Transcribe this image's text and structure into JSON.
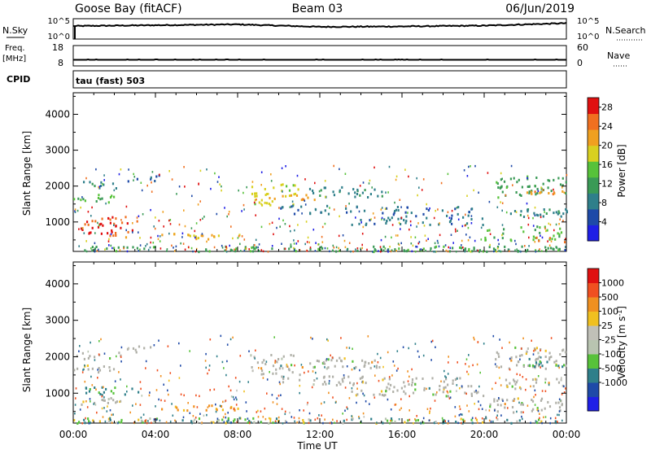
{
  "header": {
    "site": "Goose Bay (fitACF)",
    "beam": "Beam 03",
    "date": "06/Jun/2019"
  },
  "top_panels": {
    "nsky_label": "N.Sky",
    "nsky_ticks": [
      "10^5",
      "10^0"
    ],
    "nsearch_label": "N.Search",
    "nsearch_ticks": [
      "10^5",
      "10^0"
    ],
    "freq_label": "Freq.",
    "freq_unit": "[MHz]",
    "freq_ticks": [
      "18",
      "8"
    ],
    "nave_label": "Nave",
    "nave_ticks": [
      "60",
      "0"
    ],
    "cpid_label": "CPID",
    "cpid_text": "tau (fast) 503"
  },
  "colors": {
    "power_scale": [
      "#1f1fe6",
      "#1e4aa8",
      "#2f7f8a",
      "#3a9a56",
      "#57c23a",
      "#d8d020",
      "#f0a020",
      "#f07020",
      "#e01010"
    ],
    "velocity_scale": [
      "#e01010",
      "#f05020",
      "#f09020",
      "#f0c020",
      "#c0c0b8",
      "#b8c4b0",
      "#57c23a",
      "#2f7f8a",
      "#1e4aa8",
      "#1f1fe6"
    ],
    "ground_scatter": "#b0b0a8"
  },
  "chart_data": [
    {
      "type": "line",
      "title": "N.Sky / N.Search",
      "x": [
        "00:00",
        "04:00",
        "08:00",
        "12:00",
        "16:00",
        "20:00",
        "00:00"
      ],
      "series": [
        {
          "name": "N.Sky",
          "values": [
            3.2,
            3.4,
            3.6,
            3.0,
            3.1,
            3.3,
            3.9
          ]
        }
      ],
      "ylim": [
        "10^0",
        "10^5"
      ]
    },
    {
      "type": "line",
      "title": "Freq. [MHz] / Nave",
      "x": [
        "00:00",
        "04:00",
        "08:00",
        "12:00",
        "16:00",
        "20:00",
        "00:00"
      ],
      "series": [
        {
          "name": "Freq.",
          "values": [
            11,
            11,
            11,
            11,
            11,
            11,
            11
          ]
        }
      ],
      "ylim": [
        8,
        18
      ]
    },
    {
      "type": "heatmap",
      "title": "Power [dB]",
      "xlabel": "Time UT",
      "ylabel": "Slant Range [km]",
      "xticks": [
        "00:00",
        "04:00",
        "08:00",
        "12:00",
        "16:00",
        "20:00",
        "00:00"
      ],
      "xlim": [
        0,
        24
      ],
      "yticks": [
        "1000",
        "2000",
        "3000",
        "4000"
      ],
      "ylim": [
        180,
        4600
      ],
      "colorbar": {
        "label": "Power [dB]",
        "ticks": [
          "4",
          "8",
          "12",
          "16",
          "20",
          "24",
          "28"
        ],
        "range": [
          0,
          30
        ]
      },
      "patches": [
        {
          "t": [
            0.1,
            2.4
          ],
          "r": [
            1950,
            2150
          ],
          "v": 9
        },
        {
          "t": [
            2.5,
            4.2
          ],
          "r": [
            2150,
            2350
          ],
          "v": 6
        },
        {
          "t": [
            0.0,
            2.0
          ],
          "r": [
            1550,
            1800
          ],
          "v": 14
        },
        {
          "t": [
            0.5,
            3.2
          ],
          "r": [
            950,
            1200
          ],
          "v": 26
        },
        {
          "t": [
            0.3,
            2.9
          ],
          "r": [
            700,
            950
          ],
          "v": 29
        },
        {
          "t": [
            1.0,
            2.8
          ],
          "r": [
            600,
            800
          ],
          "v": 24
        },
        {
          "t": [
            4.0,
            8.2
          ],
          "r": [
            550,
            700
          ],
          "v": 20
        },
        {
          "t": [
            8.6,
            11.0
          ],
          "r": [
            1500,
            2100
          ],
          "v": 18
        },
        {
          "t": [
            9.5,
            12.0
          ],
          "r": [
            1650,
            1850
          ],
          "v": 22
        },
        {
          "t": [
            10.0,
            14.2
          ],
          "r": [
            1250,
            1500
          ],
          "v": 8
        },
        {
          "t": [
            11.0,
            15.0
          ],
          "r": [
            1700,
            2000
          ],
          "v": 9
        },
        {
          "t": [
            13.5,
            20.0
          ],
          "r": [
            950,
            1150
          ],
          "v": 8
        },
        {
          "t": [
            15.0,
            19.5
          ],
          "r": [
            1150,
            1450
          ],
          "v": 7
        },
        {
          "t": [
            20.5,
            24.0
          ],
          "r": [
            1700,
            2300
          ],
          "v": 12
        },
        {
          "t": [
            22.0,
            24.0
          ],
          "r": [
            1750,
            1900
          ],
          "v": 22
        },
        {
          "t": [
            21.0,
            24.0
          ],
          "r": [
            1150,
            1450
          ],
          "v": 9
        },
        {
          "t": [
            20.0,
            23.8
          ],
          "r": [
            500,
            900
          ],
          "v": 14
        },
        {
          "t": [
            22.5,
            23.9
          ],
          "r": [
            450,
            650
          ],
          "v": 26
        },
        {
          "t": [
            0.0,
            24.0
          ],
          "r": [
            200,
            350
          ],
          "v": 12
        }
      ]
    },
    {
      "type": "heatmap",
      "title": "Velocity [m s^-1]",
      "xlabel": "Time UT",
      "ylabel": "Slant Range [km]",
      "xticks": [
        "00:00",
        "04:00",
        "08:00",
        "12:00",
        "16:00",
        "20:00",
        "00:00"
      ],
      "xlim": [
        0,
        24
      ],
      "yticks": [
        "1000",
        "2000",
        "3000",
        "4000"
      ],
      "ylim": [
        180,
        4600
      ],
      "colorbar": {
        "label": "Velocity [m s^-1]",
        "ticks": [
          "1000",
          "500",
          "100",
          "25",
          "-25",
          "-100",
          "-500",
          "-1000"
        ],
        "range": [
          -1000,
          1000
        ]
      },
      "patches": [
        {
          "t": [
            0.1,
            2.4
          ],
          "r": [
            1950,
            2150
          ],
          "v": 0
        },
        {
          "t": [
            2.5,
            4.2
          ],
          "r": [
            2150,
            2350
          ],
          "v": 0
        },
        {
          "t": [
            0.0,
            2.0
          ],
          "r": [
            1550,
            1800
          ],
          "v": 0
        },
        {
          "t": [
            0.5,
            3.2
          ],
          "r": [
            950,
            1200
          ],
          "v": 150
        },
        {
          "t": [
            0.3,
            2.9
          ],
          "r": [
            700,
            950
          ],
          "v": 0
        },
        {
          "t": [
            4.0,
            8.2
          ],
          "r": [
            550,
            700
          ],
          "v": -150
        },
        {
          "t": [
            8.6,
            11.0
          ],
          "r": [
            1500,
            2100
          ],
          "v": 0
        },
        {
          "t": [
            10.0,
            14.2
          ],
          "r": [
            1250,
            1500
          ],
          "v": 0
        },
        {
          "t": [
            11.0,
            15.0
          ],
          "r": [
            1700,
            2000
          ],
          "v": 0
        },
        {
          "t": [
            13.5,
            20.0
          ],
          "r": [
            950,
            1150
          ],
          "v": 0
        },
        {
          "t": [
            15.0,
            19.5
          ],
          "r": [
            1150,
            1450
          ],
          "v": 0
        },
        {
          "t": [
            20.5,
            24.0
          ],
          "r": [
            1700,
            2300
          ],
          "v": 0
        },
        {
          "t": [
            22.0,
            24.0
          ],
          "r": [
            1750,
            1900
          ],
          "v": 120
        },
        {
          "t": [
            21.0,
            24.0
          ],
          "r": [
            1150,
            1450
          ],
          "v": 0
        },
        {
          "t": [
            20.0,
            23.8
          ],
          "r": [
            500,
            900
          ],
          "v": 0
        },
        {
          "t": [
            0.0,
            24.0
          ],
          "r": [
            200,
            350
          ],
          "v": 60
        }
      ]
    }
  ]
}
